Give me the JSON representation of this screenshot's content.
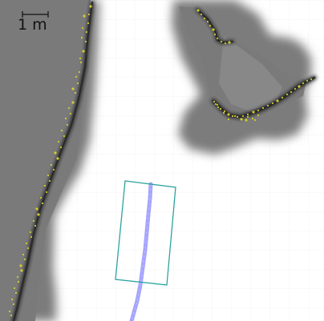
{
  "scale_bar": {
    "label": "1 m"
  },
  "colors": {
    "background": "#ffffff",
    "occupancy_gray": "#7b7b7b",
    "wall_dark": "#1a1a1a",
    "laser_points": "#d8d12d",
    "path": "#9999ff",
    "footprint": "#2ca3a0",
    "grid": "#eeeeee"
  }
}
